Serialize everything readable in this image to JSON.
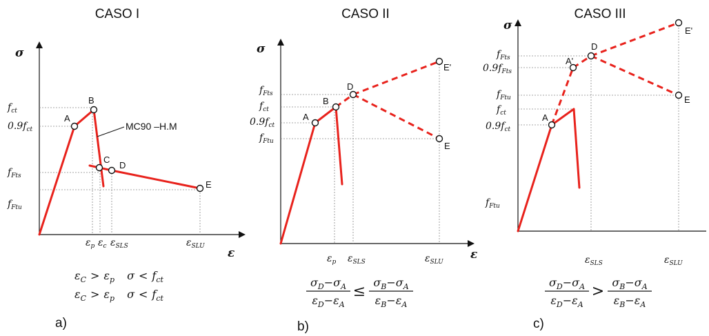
{
  "panels": [
    {
      "title": "CASO I",
      "letter": "a)",
      "y_axis": "σ",
      "x_axis": "ε",
      "y_labels": [
        {
          "main": "f",
          "sub": "ct"
        },
        {
          "main": "0.9f",
          "sub": "ct"
        },
        {
          "main": "f",
          "sub": "Fts"
        },
        {
          "main": "f",
          "sub": "Ftu"
        }
      ],
      "x_labels": [
        {
          "main": "ε",
          "sub": "p"
        },
        {
          "main": "ε",
          "sub": "c"
        },
        {
          "main": "ε",
          "sub": "SLS"
        },
        {
          "main": "ε",
          "sub": "SLU"
        }
      ],
      "points": [
        "A",
        "B",
        "C",
        "D",
        "E"
      ],
      "annotation": "MC90 –H.M",
      "conditions": [
        {
          "l": "ε",
          "ls": "C",
          "op": ">",
          "r": "ε",
          "rs": "p",
          "s": "σ",
          "op2": "<",
          "f": "f",
          "fs": "ct"
        },
        {
          "l": "ε",
          "ls": "C",
          "op": ">",
          "r": "ε",
          "rs": "p",
          "s": "σ",
          "op2": "<",
          "f": "f",
          "fs": "ct"
        }
      ]
    },
    {
      "title": "CASO II",
      "letter": "b)",
      "y_axis": "σ",
      "x_axis": "ε",
      "y_labels": [
        {
          "main": "f",
          "sub": "Fts"
        },
        {
          "main": "f",
          "sub": "ct"
        },
        {
          "main": "0.9f",
          "sub": "ct"
        },
        {
          "main": "f",
          "sub": "Ftu"
        }
      ],
      "x_labels": [
        {
          "main": "ε",
          "sub": "p"
        },
        {
          "main": "ε",
          "sub": "SLS"
        },
        {
          "main": "ε",
          "sub": "SLU"
        }
      ],
      "points": [
        "A",
        "B",
        "D",
        "E'",
        "E"
      ],
      "inequality": {
        "lhs_num": [
          "σ",
          "D",
          "−σ",
          "A"
        ],
        "lhs_den": [
          "ε",
          "D",
          "−ε",
          "A"
        ],
        "op": "≤",
        "rhs_num": [
          "σ",
          "B",
          "−σ",
          "A"
        ],
        "rhs_den": [
          "ε",
          "B",
          "−ε",
          "A"
        ]
      }
    },
    {
      "title": "CASO III",
      "letter": "c)",
      "y_axis": "σ",
      "y_labels": [
        {
          "main": "f",
          "sub": "Fts"
        },
        {
          "main": "0.9f",
          "sub": "Fts"
        },
        {
          "main": "f",
          "sub": "Ftu"
        },
        {
          "main": "f",
          "sub": "ct"
        },
        {
          "main": "0.9f",
          "sub": "ct"
        },
        {
          "main": "f",
          "sub": "Ftu"
        }
      ],
      "x_labels": [
        {
          "main": "ε",
          "sub": "SLS"
        },
        {
          "main": "ε",
          "sub": "SLU"
        }
      ],
      "points": [
        "A",
        "A'",
        "D",
        "E'",
        "E"
      ],
      "inequality": {
        "lhs_num": [
          "σ",
          "D",
          "−σ",
          "A"
        ],
        "lhs_den": [
          "ε",
          "D",
          "−ε",
          "A"
        ],
        "op": ">",
        "rhs_num": [
          "σ",
          "B",
          "−σ",
          "A"
        ],
        "rhs_den": [
          "ε",
          "B",
          "−ε",
          "A"
        ]
      }
    }
  ],
  "colors": {
    "curve": "#e8221c",
    "axis": "#111111",
    "guide": "#888888"
  }
}
